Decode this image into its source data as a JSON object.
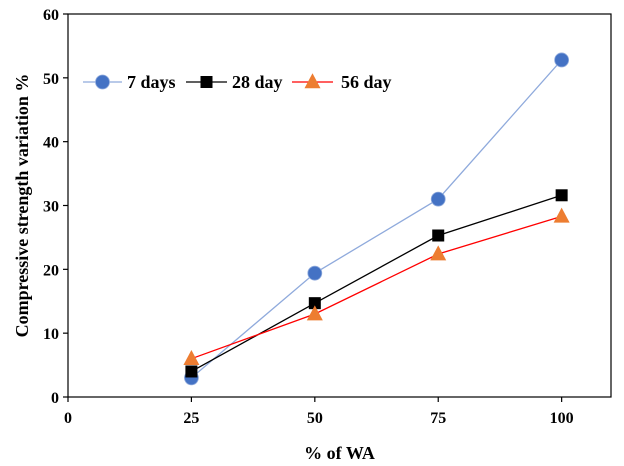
{
  "chart_data": {
    "type": "line",
    "title": "",
    "xlabel": "% of WA",
    "ylabel": "Compressive strength variation %",
    "xlim": [
      0,
      110
    ],
    "ylim": [
      0,
      60
    ],
    "x_ticks": [
      0,
      25,
      50,
      75,
      100
    ],
    "y_ticks": [
      0,
      10,
      20,
      30,
      40,
      50,
      60
    ],
    "grid": false,
    "legend_position": "top-left",
    "x": [
      25,
      50,
      75,
      100
    ],
    "series": [
      {
        "name": "7 days",
        "values": [
          3,
          19.4,
          31,
          52.8
        ],
        "color": "#4472C4",
        "marker": "circle",
        "line_color": "#8FAADC"
      },
      {
        "name": "28 day",
        "values": [
          4,
          14.7,
          25.3,
          31.6
        ],
        "color": "#000000",
        "marker": "square",
        "line_color": "#000000"
      },
      {
        "name": "56 day",
        "values": [
          6,
          13,
          22.4,
          28.3
        ],
        "color": "#ED7D31",
        "marker": "triangle",
        "line_color": "#FF0000"
      }
    ]
  }
}
